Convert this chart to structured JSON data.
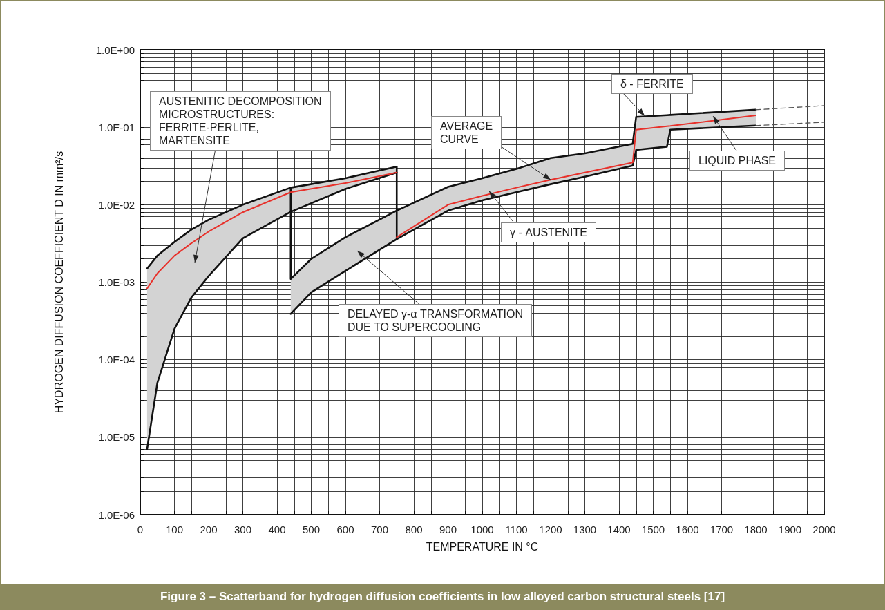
{
  "chart_data": {
    "type": "line",
    "title": "Figure 3 – Scatterband for hydrogen diffusion coefficients in low alloyed carbon structural steels [17]",
    "xlabel": "TEMPERATURE IN °C",
    "ylabel": "HYDROGEN DIFFUSION COEFFICIENT D IN mm²/s",
    "xlim": [
      0,
      2000
    ],
    "xticks": [
      0,
      {
        "value": 50,
        "label": null
      },
      100,
      {
        "value": 150,
        "label": null
      },
      200,
      {
        "value": 250,
        "label": null
      },
      300,
      {
        "value": 350,
        "label": null
      },
      400,
      {
        "value": 450,
        "label": null
      },
      500,
      {
        "value": 550,
        "label": null
      },
      600,
      {
        "value": 650,
        "label": null
      },
      700,
      {
        "value": 750,
        "label": null
      },
      800,
      {
        "value": 850,
        "label": null
      },
      900,
      {
        "value": 950,
        "label": null
      },
      1000,
      {
        "value": 1050,
        "label": null
      },
      1100,
      {
        "value": 1150,
        "label": null
      },
      1200,
      {
        "value": 1250,
        "label": null
      },
      1300,
      {
        "value": 1350,
        "label": null
      },
      1400,
      {
        "value": 1450,
        "label": null
      },
      1500,
      {
        "value": 1550,
        "label": null
      },
      1600,
      {
        "value": 1650,
        "label": null
      },
      1700,
      {
        "value": 1750,
        "label": null
      },
      1800,
      {
        "value": 1850,
        "label": null
      },
      1900,
      {
        "value": 1950,
        "label": null
      },
      2000
    ],
    "ylim": [
      1e-06,
      1
    ],
    "yticks": [
      {
        "value": 1e-06,
        "label": "1.0E-06"
      },
      {
        "value": 2e-06,
        "label": null
      },
      {
        "value": 3e-06,
        "label": null
      },
      {
        "value": 4e-06,
        "label": null
      },
      {
        "value": 5e-06,
        "label": null
      },
      {
        "value": 6e-06,
        "label": null
      },
      {
        "value": 7e-06,
        "label": null
      },
      {
        "value": 8e-06,
        "label": null
      },
      {
        "value": 9e-06,
        "label": null
      },
      {
        "value": 1e-05,
        "label": "1.0E-05"
      },
      {
        "value": 2e-05,
        "label": null
      },
      {
        "value": 3e-05,
        "label": null
      },
      {
        "value": 4e-05,
        "label": null
      },
      {
        "value": 5e-05,
        "label": null
      },
      {
        "value": 6e-05,
        "label": null
      },
      {
        "value": 7e-05,
        "label": null
      },
      {
        "value": 8e-05,
        "label": null
      },
      {
        "value": 9e-05,
        "label": null
      },
      {
        "value": 0.0001,
        "label": "1.0E-04"
      },
      {
        "value": 0.0002,
        "label": null
      },
      {
        "value": 0.0003,
        "label": null
      },
      {
        "value": 0.0004,
        "label": null
      },
      {
        "value": 0.0005,
        "label": null
      },
      {
        "value": 0.0006,
        "label": null
      },
      {
        "value": 0.0007,
        "label": null
      },
      {
        "value": 0.0008,
        "label": null
      },
      {
        "value": 0.0009,
        "label": null
      },
      {
        "value": 0.001,
        "label": "1.0E-03"
      },
      {
        "value": 0.002,
        "label": null
      },
      {
        "value": 0.003,
        "label": null
      },
      {
        "value": 0.004,
        "label": null
      },
      {
        "value": 0.005,
        "label": null
      },
      {
        "value": 0.006,
        "label": null
      },
      {
        "value": 0.007,
        "label": null
      },
      {
        "value": 0.008,
        "label": null
      },
      {
        "value": 0.009,
        "label": null
      },
      {
        "value": 0.01,
        "label": "1.0E-02"
      },
      {
        "value": 0.02,
        "label": null
      },
      {
        "value": 0.03,
        "label": null
      },
      {
        "value": 0.04,
        "label": null
      },
      {
        "value": 0.05,
        "label": null
      },
      {
        "value": 0.06,
        "label": null
      },
      {
        "value": 0.07,
        "label": null
      },
      {
        "value": 0.08,
        "label": null
      },
      {
        "value": 0.09,
        "label": null
      },
      {
        "value": 0.1,
        "label": "1.0E-01"
      },
      {
        "value": 0.2,
        "label": null
      },
      {
        "value": 0.3,
        "label": null
      },
      {
        "value": 0.4,
        "label": null
      },
      {
        "value": 0.5,
        "label": null
      },
      {
        "value": 0.6,
        "label": null
      },
      {
        "value": 0.7,
        "label": null
      },
      {
        "value": 0.8,
        "label": null
      },
      {
        "value": 0.9,
        "label": null
      },
      {
        "value": 1,
        "label": "1.0E+00"
      }
    ],
    "log": "y",
    "grid": true,
    "line_style": "solid",
    "series": [
      {
        "color": "#e8302a",
        "x": [
          20,
          50,
          100,
          150,
          200,
          300,
          440,
          600,
          750,
          750
        ],
        "values": [
          0.00083,
          0.0013,
          0.0022,
          0.0032,
          0.0045,
          0.008,
          0.0145,
          0.019,
          0.026,
          null
        ],
        "upper": [
          0.0015,
          0.0022,
          0.0033,
          0.0048,
          0.0064,
          0.01,
          0.0166,
          0.022,
          0.031,
          0.0036
        ],
        "lower": [
          7e-06,
          5e-05,
          0.00025,
          0.00064,
          0.0012,
          0.0037,
          0.0081,
          0.016,
          0.026,
          0.026
        ]
      },
      {
        "color": "#e8302a",
        "x": [
          440,
          440,
          500,
          600,
          750,
          900,
          1000,
          1100,
          1200,
          1300,
          1440,
          1450,
          1540,
          1550,
          1800
        ],
        "values": [
          null,
          null,
          null,
          null,
          0.0038,
          0.01,
          0.013,
          0.0166,
          0.021,
          0.026,
          0.035,
          0.093,
          0.103,
          0.104,
          0.142
        ],
        "upper": [
          0.0166,
          0.0011,
          0.002,
          0.0038,
          0.0084,
          0.017,
          0.022,
          0.029,
          0.04,
          0.046,
          0.061,
          0.136,
          0.143,
          0.144,
          0.168
        ],
        "lower": [
          0.00039,
          0.00039,
          0.00074,
          0.0014,
          0.0036,
          0.0084,
          0.0114,
          0.0145,
          0.0184,
          0.023,
          0.032,
          0.051,
          0.056,
          0.093,
          0.105
        ]
      },
      {
        "color": "#111111",
        "x": [
          20,
          50,
          100,
          150,
          200,
          300,
          440,
          600,
          750,
          750
        ],
        "values": [
          0.0015,
          0.0022,
          0.0033,
          0.0048,
          0.0064,
          0.01,
          0.0166,
          0.022,
          0.031,
          0.0036
        ]
      },
      {
        "color": "#111111",
        "x": [
          20,
          50,
          100,
          150,
          200,
          300,
          440,
          600,
          750
        ],
        "values": [
          7e-06,
          5e-05,
          0.00025,
          0.00064,
          0.0012,
          0.0037,
          0.0081,
          0.016,
          0.026
        ]
      },
      {
        "color": "#111111",
        "x": [
          440,
          440,
          500,
          600,
          750,
          900,
          1000,
          1100,
          1200,
          1300,
          1440,
          1450,
          1540,
          1550,
          1800
        ],
        "values": [
          0.0166,
          0.0011,
          0.002,
          0.0038,
          0.0084,
          0.017,
          0.022,
          0.029,
          0.04,
          0.046,
          0.061,
          0.136,
          0.143,
          0.144,
          0.168
        ]
      },
      {
        "color": "#111111",
        "x": [
          440,
          500,
          600,
          750,
          900,
          1000,
          1100,
          1200,
          1300,
          1440,
          1450,
          1540,
          1550,
          1800
        ],
        "values": [
          0.00039,
          0.00074,
          0.0014,
          0.0036,
          0.0084,
          0.0114,
          0.0145,
          0.0184,
          0.023,
          0.032,
          0.051,
          0.056,
          0.093,
          0.105
        ]
      },
      {
        "color": "#555555",
        "line_style": "dashed",
        "x": [
          1800,
          2000
        ],
        "values": [
          0.168,
          0.19
        ]
      },
      {
        "color": "#555555",
        "line_style": "dashed",
        "x": [
          1800,
          2000
        ],
        "values": [
          0.105,
          0.116
        ]
      }
    ],
    "annotations": [
      "AUSTENITIC DECOMPOSITION\nMICROSTRUCTURES:\nFERRITE-PERLITE,\nMARTENSITE",
      {
        "text": "AVERAGE\nCURVE",
        "x": 1200,
        "y": 0.021
      },
      {
        "text": "γ - AUSTENITE",
        "x": 1020,
        "y": 0.015
      },
      "DELAYED γ-α TRANSFORMATION\nDUE TO SUPERCOOLING",
      {
        "text": "δ - FERRITE",
        "x": 1475,
        "y": 0.14
      },
      {
        "text": "LIQUID PHASE",
        "x": 1675,
        "y": 0.139
      }
    ]
  }
}
